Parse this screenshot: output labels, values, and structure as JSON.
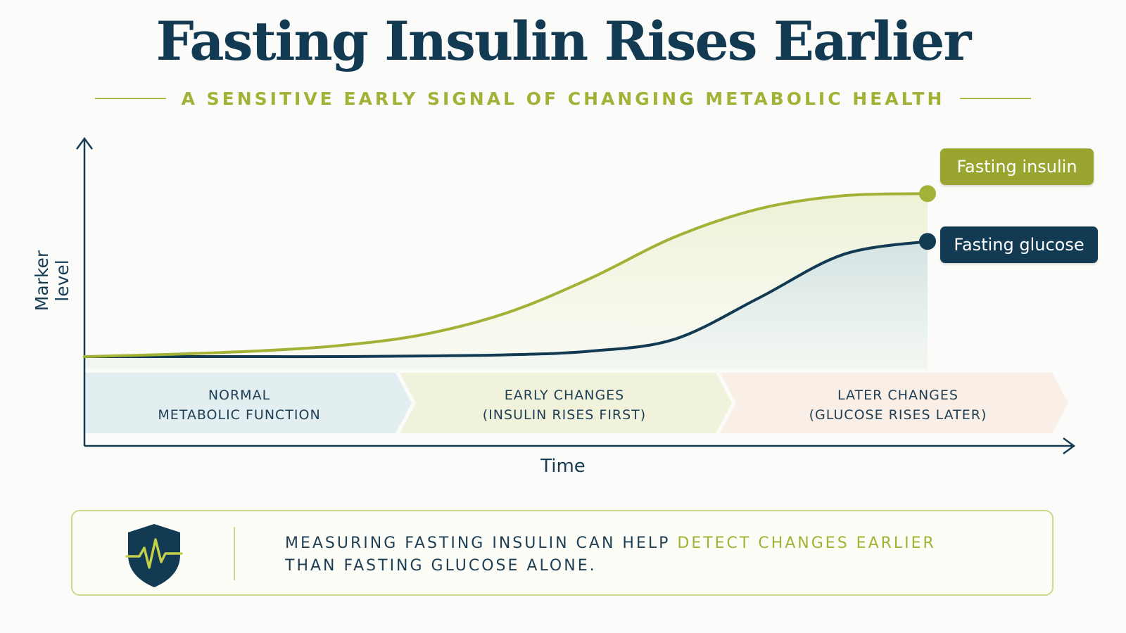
{
  "header": {
    "title": "Fasting Insulin Rises Earlier",
    "subtitle": "A SENSITIVE EARLY SIGNAL OF CHANGING METABOLIC HEALTH"
  },
  "colors": {
    "insulin": "#a3b136",
    "glucose": "#123a52",
    "accent": "#a3b136"
  },
  "chart_data": {
    "type": "line",
    "title": "",
    "xlabel": "Time",
    "ylabel": "Marker level",
    "x": [
      0,
      0.1,
      0.2,
      0.3,
      0.4,
      0.5,
      0.6,
      0.7,
      0.8,
      0.9,
      1.0
    ],
    "series": [
      {
        "name": "Fasting insulin",
        "values": [
          0.0,
          0.01,
          0.025,
          0.05,
          0.1,
          0.2,
          0.36,
          0.55,
          0.68,
          0.74,
          0.75
        ]
      },
      {
        "name": "Fasting glucose",
        "values": [
          0.0,
          0.0,
          0.0,
          0.0,
          0.003,
          0.008,
          0.025,
          0.08,
          0.27,
          0.47,
          0.53
        ]
      }
    ],
    "xlim": [
      0,
      1
    ],
    "ylim": [
      0,
      1
    ],
    "grid": false,
    "phases": [
      {
        "line1": "NORMAL",
        "line2": "METABOLIC FUNCTION"
      },
      {
        "line1": "EARLY CHANGES",
        "line2": "(INSULIN RISES FIRST)"
      },
      {
        "line1": "LATER CHANGES",
        "line2": "(GLUCOSE RISES LATER)"
      }
    ]
  },
  "callout": {
    "icon": "shield-heartbeat-icon",
    "text_part1": "MEASURING FASTING INSULIN CAN HELP ",
    "text_highlight": "DETECT CHANGES EARLIER",
    "text_part2": "THAN FASTING GLUCOSE ALONE."
  }
}
